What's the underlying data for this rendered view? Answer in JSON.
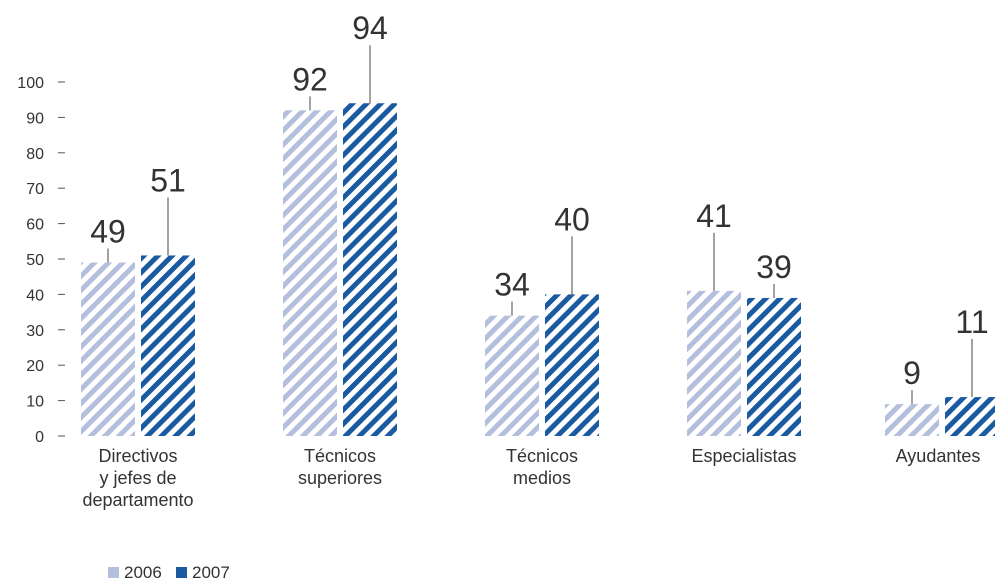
{
  "chart_data": {
    "type": "bar",
    "categories": [
      [
        "Directivos",
        "y jefes de",
        "departamento"
      ],
      [
        "Técnicos",
        "superiores"
      ],
      [
        "Técnicos",
        "medios"
      ],
      [
        "Especialistas"
      ],
      [
        "Ayudantes"
      ]
    ],
    "series": [
      {
        "name": "2006",
        "values": [
          49,
          92,
          34,
          41,
          9
        ],
        "color": "#b3bfdc"
      },
      {
        "name": "2007",
        "values": [
          51,
          94,
          40,
          39,
          11
        ],
        "color": "#1a5aa0"
      }
    ],
    "title": "",
    "xlabel": "",
    "ylabel": "",
    "ylim": [
      0,
      100
    ],
    "yticks": [
      0,
      10,
      20,
      30,
      40,
      50,
      60,
      70,
      80,
      90,
      100
    ],
    "grid": false,
    "legend": "bottom-left"
  }
}
